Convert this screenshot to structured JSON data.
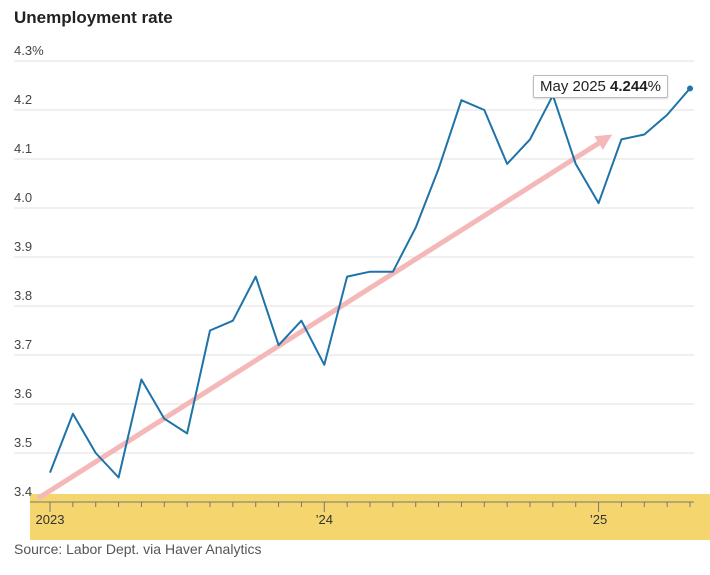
{
  "chart_data": {
    "type": "line",
    "title": "Unemployment rate",
    "source": "Source: Labor Dept. via Haver Analytics",
    "y_ticks": [
      "4.3%",
      "4.2",
      "4.1",
      "4.0",
      "3.9",
      "3.8",
      "3.7",
      "3.6",
      "3.5",
      "3.4"
    ],
    "ylim": [
      3.4,
      4.3
    ],
    "x_tick_labels": [
      "2023",
      "’24",
      "’25"
    ],
    "grid": true,
    "x": [
      "2023-01",
      "2023-02",
      "2023-03",
      "2023-04",
      "2023-05",
      "2023-06",
      "2023-07",
      "2023-08",
      "2023-09",
      "2023-10",
      "2023-11",
      "2023-12",
      "2024-01",
      "2024-02",
      "2024-03",
      "2024-04",
      "2024-05",
      "2024-06",
      "2024-07",
      "2024-08",
      "2024-09",
      "2024-10",
      "2024-11",
      "2024-12",
      "2025-01",
      "2025-02",
      "2025-03",
      "2025-04",
      "2025-05"
    ],
    "series": [
      {
        "values": [
          3.46,
          3.58,
          3.5,
          3.45,
          3.65,
          3.57,
          3.54,
          3.75,
          3.77,
          3.86,
          3.72,
          3.77,
          3.68,
          3.86,
          3.87,
          3.87,
          3.96,
          4.08,
          4.22,
          4.2,
          4.09,
          4.14,
          4.23,
          4.09,
          4.01,
          4.14,
          4.15,
          4.19,
          4.244
        ],
        "color": "#1e73a8"
      }
    ],
    "trend": {
      "start": [
        "2023-01",
        3.41
      ],
      "end": [
        "2025-04",
        4.19
      ],
      "color": "#f5b8b8"
    },
    "recession_band": {
      "from": "2023-01",
      "to": "2025-05",
      "color": "#f5d56e"
    },
    "tooltip": {
      "label": "May 2025",
      "value": "4.244",
      "unit": "%"
    }
  }
}
